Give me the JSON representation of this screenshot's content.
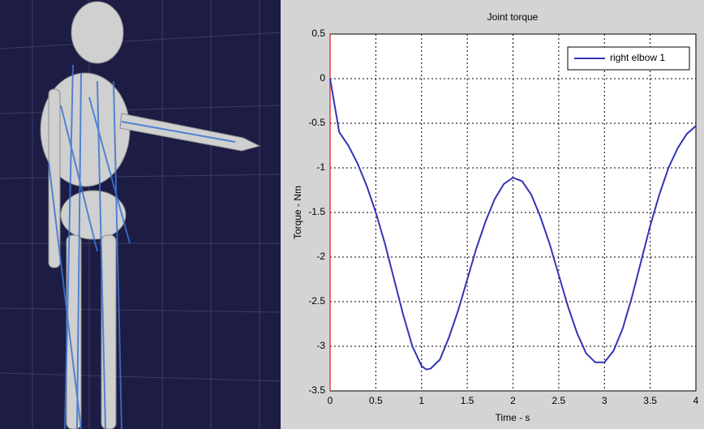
{
  "chart_data": {
    "type": "line",
    "title": "Joint torque",
    "x_label": "Time - s",
    "y_label": "Torque - Nm",
    "x": [
      0,
      0.05,
      0.1,
      0.2,
      0.3,
      0.4,
      0.5,
      0.6,
      0.7,
      0.8,
      0.9,
      1.0,
      1.05,
      1.1,
      1.2,
      1.3,
      1.4,
      1.5,
      1.6,
      1.7,
      1.8,
      1.9,
      2.0,
      2.1,
      2.2,
      2.3,
      2.4,
      2.5,
      2.6,
      2.7,
      2.8,
      2.9,
      3.0,
      3.1,
      3.2,
      3.3,
      3.4,
      3.5,
      3.6,
      3.7,
      3.8,
      3.9,
      4.0
    ],
    "series": [
      {
        "name": "right elbow 1",
        "color": "#3434b4",
        "values": [
          0,
          -0.3,
          -0.6,
          -0.75,
          -0.95,
          -1.2,
          -1.5,
          -1.85,
          -2.25,
          -2.65,
          -3.0,
          -3.22,
          -3.26,
          -3.25,
          -3.15,
          -2.9,
          -2.6,
          -2.25,
          -1.9,
          -1.6,
          -1.35,
          -1.18,
          -1.11,
          -1.15,
          -1.3,
          -1.55,
          -1.85,
          -2.2,
          -2.55,
          -2.85,
          -3.08,
          -3.18,
          -3.18,
          -3.05,
          -2.8,
          -2.45,
          -2.05,
          -1.65,
          -1.3,
          -1.0,
          -0.78,
          -0.62,
          -0.53
        ]
      }
    ],
    "xlim": [
      0,
      4
    ],
    "xticks": [
      0,
      0.5,
      1,
      1.5,
      2,
      2.5,
      3,
      3.5,
      4
    ],
    "ylim": [
      -3.5,
      0.5
    ],
    "yticks": [
      0.5,
      0,
      -0.5,
      -1,
      -1.5,
      -2,
      -2.5,
      -3,
      -3.5
    ],
    "grid": true,
    "legend": "upper-right"
  }
}
